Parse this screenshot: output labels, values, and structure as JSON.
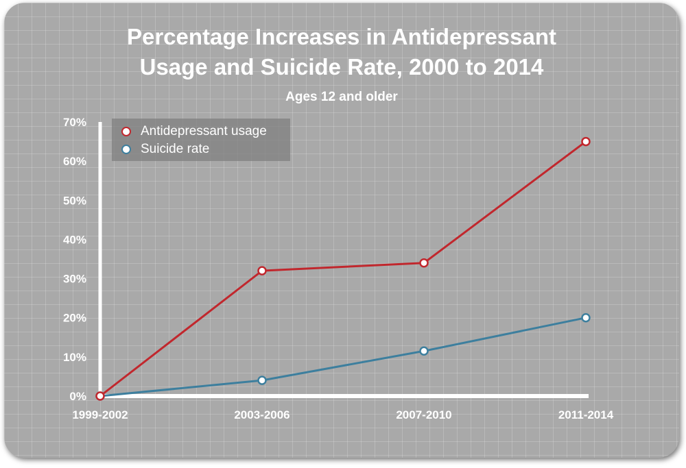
{
  "chart_data": {
    "type": "line",
    "title_lines": [
      "Percentage Increases in Antidepressant",
      "Usage and Suicide Rate, 2000 to 2014"
    ],
    "subtitle": "Ages 12 and older",
    "categories": [
      "1999-2002",
      "2003-2006",
      "2007-2010",
      "2011-2014"
    ],
    "y_ticks": [
      "0%",
      "10%",
      "20%",
      "30%",
      "40%",
      "50%",
      "60%",
      "70%"
    ],
    "ylim": [
      0,
      70
    ],
    "xlabel": "",
    "ylabel": "",
    "grid": true,
    "legend_position": "top-left",
    "series": [
      {
        "name": "Antidepressant usage",
        "color": "#c1272d",
        "values": [
          0,
          32,
          34,
          65
        ]
      },
      {
        "name": "Suicide rate",
        "color": "#3d7f9e",
        "values": [
          0,
          4,
          11.5,
          20
        ]
      }
    ]
  }
}
